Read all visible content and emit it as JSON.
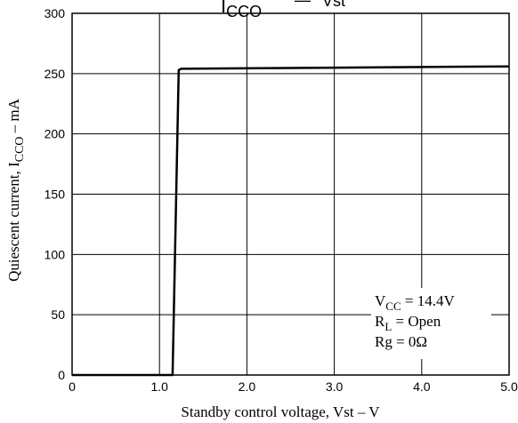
{
  "chart_data": {
    "type": "line",
    "title_parts": {
      "main": "I",
      "main_sub": "CCO",
      "dash": "—",
      "var": "Vst"
    },
    "xlabel": "Standby control voltage, Vst  –  V",
    "ylabel_pre": "Quiescent current, I",
    "ylabel_sub": "CCO",
    "ylabel_post": " – mA",
    "xlim": [
      0,
      5.0
    ],
    "ylim": [
      0,
      300
    ],
    "xticks": [
      0,
      1.0,
      2.0,
      3.0,
      4.0,
      5.0
    ],
    "xtick_labels": [
      "0",
      "1.0",
      "2.0",
      "3.0",
      "4.0",
      "5.0"
    ],
    "yticks": [
      0,
      50,
      100,
      150,
      200,
      250,
      300
    ],
    "ytick_labels": [
      "0",
      "50",
      "100",
      "150",
      "200",
      "250",
      "300"
    ],
    "grid": true,
    "series": [
      {
        "x": [
          0,
          1.15,
          1.22,
          1.25,
          5.0
        ],
        "y": [
          0,
          0,
          253,
          254,
          256
        ]
      }
    ],
    "annotations": [
      {
        "main": "V",
        "sub": "CC",
        "rest": " = 14.4V"
      },
      {
        "main": "R",
        "sub": "L",
        "rest": " = Open"
      },
      {
        "main": "Rg",
        "sub": "",
        "rest": " = 0Ω"
      }
    ],
    "colors": {
      "line": "#000000",
      "grid": "#000000",
      "background": "#ffffff"
    }
  }
}
